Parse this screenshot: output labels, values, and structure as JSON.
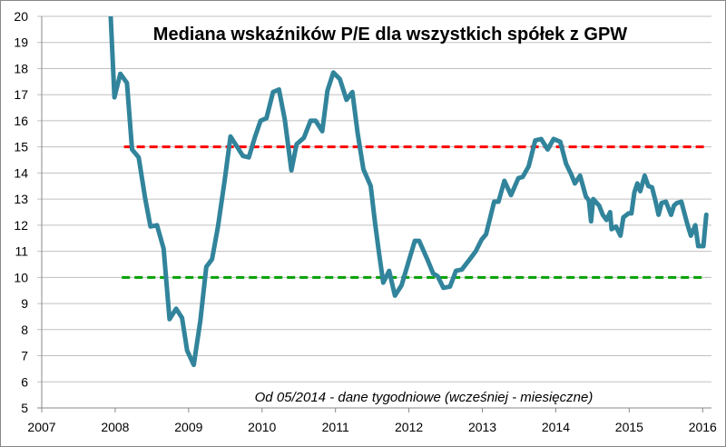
{
  "chart_data": {
    "type": "line",
    "title": "Mediana wskaźników P/E dla wszystkich spółek z GPW",
    "annotation": "Od 05/2014 - dane tygodniowe (wcześniej - miesięczne)",
    "xlabel": "",
    "ylabel": "",
    "xlim": [
      2007,
      2016.12
    ],
    "ylim": [
      5,
      20
    ],
    "x_ticks": [
      "2007",
      "2008",
      "2009",
      "2010",
      "2011",
      "2012",
      "2013",
      "2014",
      "2015",
      "2016"
    ],
    "y_ticks": [
      "5",
      "6",
      "7",
      "8",
      "9",
      "10",
      "11",
      "12",
      "13",
      "14",
      "15",
      "16",
      "17",
      "18",
      "19",
      "20"
    ],
    "grid": true,
    "legend": "none",
    "colors": {
      "series": "#31849b",
      "upper_ref": "#ff0000",
      "lower_ref": "#00a000",
      "grid": "#c0c0c0"
    },
    "series": [
      {
        "points": [
          [
            2007.93,
            20.5
          ],
          [
            2007.99,
            16.9
          ],
          [
            2008.07,
            17.8
          ],
          [
            2008.16,
            17.45
          ],
          [
            2008.23,
            14.9
          ],
          [
            2008.32,
            14.6
          ],
          [
            2008.41,
            13.0
          ],
          [
            2008.48,
            11.95
          ],
          [
            2008.57,
            12.0
          ],
          [
            2008.66,
            11.1
          ],
          [
            2008.74,
            8.4
          ],
          [
            2008.83,
            8.8
          ],
          [
            2008.91,
            8.45
          ],
          [
            2008.98,
            7.2
          ],
          [
            2009.07,
            6.65
          ],
          [
            2009.16,
            8.35
          ],
          [
            2009.24,
            10.4
          ],
          [
            2009.32,
            10.7
          ],
          [
            2009.4,
            11.95
          ],
          [
            2009.49,
            13.7
          ],
          [
            2009.57,
            15.4
          ],
          [
            2009.65,
            15.05
          ],
          [
            2009.74,
            14.65
          ],
          [
            2009.82,
            14.6
          ],
          [
            2009.9,
            15.35
          ],
          [
            2009.98,
            16.0
          ],
          [
            2010.06,
            16.1
          ],
          [
            2010.15,
            17.1
          ],
          [
            2010.23,
            17.2
          ],
          [
            2010.31,
            16.05
          ],
          [
            2010.4,
            14.1
          ],
          [
            2010.47,
            15.1
          ],
          [
            2010.57,
            15.35
          ],
          [
            2010.66,
            16.0
          ],
          [
            2010.73,
            16.0
          ],
          [
            2010.82,
            15.6
          ],
          [
            2010.89,
            17.15
          ],
          [
            2010.97,
            17.85
          ],
          [
            2011.06,
            17.6
          ],
          [
            2011.15,
            16.8
          ],
          [
            2011.23,
            17.1
          ],
          [
            2011.3,
            15.55
          ],
          [
            2011.38,
            14.15
          ],
          [
            2011.48,
            13.5
          ],
          [
            2011.54,
            12.05
          ],
          [
            2011.59,
            11.0
          ],
          [
            2011.65,
            9.8
          ],
          [
            2011.73,
            10.25
          ],
          [
            2011.81,
            9.3
          ],
          [
            2011.9,
            9.7
          ],
          [
            2012.0,
            10.65
          ],
          [
            2012.08,
            11.4
          ],
          [
            2012.14,
            11.4
          ],
          [
            2012.25,
            10.7
          ],
          [
            2012.33,
            10.15
          ],
          [
            2012.39,
            10.05
          ],
          [
            2012.47,
            9.6
          ],
          [
            2012.56,
            9.65
          ],
          [
            2012.64,
            10.25
          ],
          [
            2012.72,
            10.3
          ],
          [
            2012.83,
            10.7
          ],
          [
            2012.91,
            11.0
          ],
          [
            2012.99,
            11.45
          ],
          [
            2013.05,
            11.65
          ],
          [
            2013.16,
            12.9
          ],
          [
            2013.22,
            12.9
          ],
          [
            2013.3,
            13.7
          ],
          [
            2013.39,
            13.15
          ],
          [
            2013.49,
            13.8
          ],
          [
            2013.55,
            13.85
          ],
          [
            2013.63,
            14.25
          ],
          [
            2013.72,
            15.25
          ],
          [
            2013.8,
            15.3
          ],
          [
            2013.89,
            14.9
          ],
          [
            2013.97,
            15.3
          ],
          [
            2014.06,
            15.2
          ],
          [
            2014.14,
            14.35
          ],
          [
            2014.21,
            13.95
          ],
          [
            2014.26,
            13.6
          ],
          [
            2014.33,
            13.9
          ],
          [
            2014.41,
            13.1
          ],
          [
            2014.45,
            12.95
          ],
          [
            2014.48,
            12.15
          ],
          [
            2014.51,
            13.0
          ],
          [
            2014.59,
            12.75
          ],
          [
            2014.64,
            12.4
          ],
          [
            2014.69,
            12.2
          ],
          [
            2014.74,
            12.5
          ],
          [
            2014.76,
            11.85
          ],
          [
            2014.82,
            11.95
          ],
          [
            2014.88,
            11.6
          ],
          [
            2014.92,
            12.3
          ],
          [
            2014.99,
            12.45
          ],
          [
            2015.03,
            12.45
          ],
          [
            2015.07,
            13.25
          ],
          [
            2015.11,
            13.6
          ],
          [
            2015.15,
            13.3
          ],
          [
            2015.21,
            13.9
          ],
          [
            2015.26,
            13.5
          ],
          [
            2015.31,
            13.45
          ],
          [
            2015.36,
            12.9
          ],
          [
            2015.4,
            12.4
          ],
          [
            2015.44,
            12.85
          ],
          [
            2015.5,
            12.9
          ],
          [
            2015.57,
            12.4
          ],
          [
            2015.61,
            12.75
          ],
          [
            2015.65,
            12.85
          ],
          [
            2015.71,
            12.9
          ],
          [
            2015.79,
            12.05
          ],
          [
            2015.84,
            11.6
          ],
          [
            2015.9,
            12.0
          ],
          [
            2015.94,
            11.2
          ],
          [
            2016.01,
            11.2
          ],
          [
            2016.05,
            12.4
          ]
        ]
      }
    ],
    "reference_lines": [
      {
        "value": 15,
        "x_from": 2008.12,
        "x_to": 2016.05,
        "style": "dashed",
        "color": "#ff0000"
      },
      {
        "value": 10,
        "x_from": 2008.09,
        "x_to": 2016.05,
        "style": "dashed",
        "color": "#00a000"
      }
    ]
  }
}
